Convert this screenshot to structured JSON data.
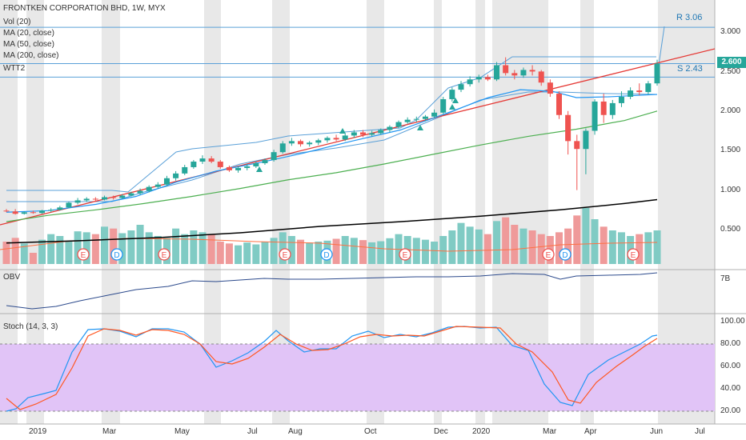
{
  "header": {
    "title": "FRONTKEN CORPORATION BHD, 1W, MYX",
    "legend": [
      "Vol (20)",
      "MA (20, close)",
      "MA (50, close)",
      "MA (200, close)",
      "WTT2"
    ]
  },
  "colors": {
    "up": "#26a69a",
    "down": "#ef5350",
    "ma20": "#2196f3",
    "ma50": "#4caf50",
    "ma200": "#000000",
    "trend": "#e53935",
    "stoch_k": "#2196f3",
    "stoch_d": "#ff5722",
    "stoch_band": "#e1c4f7",
    "obv": "#2c4a8c",
    "weekend_shade": "#e6e6e6"
  },
  "price_panel": {
    "last_price": "2.600",
    "resistance_label": "R 3.06",
    "support_label": "S 2.43",
    "yticks": [
      "3.000",
      "2.500",
      "2.000",
      "1.500",
      "1.000",
      "0.500"
    ]
  },
  "obv_panel": {
    "label": "OBV",
    "ytick": "7B"
  },
  "stoch_panel": {
    "label": "Stoch (14, 3, 3)",
    "yticks": [
      "100.00",
      "80.00",
      "60.00",
      "40.00",
      "20.00"
    ]
  },
  "x_axis": {
    "ticks": [
      "2019",
      "Mar",
      "May",
      "Jul",
      "Aug",
      "Oct",
      "Dec",
      "2020",
      "Mar",
      "Apr",
      "Jun",
      "Jul"
    ]
  },
  "chart_data": {
    "type": "candlestick",
    "title": "FRONTKEN CORPORATION BHD, 1W, MYX",
    "price_ylim": [
      0.1,
      3.3
    ],
    "candles": [
      [
        0.74,
        0.76,
        0.72,
        0.73
      ],
      [
        0.73,
        0.76,
        0.69,
        0.7
      ],
      [
        0.7,
        0.73,
        0.69,
        0.72
      ],
      [
        0.72,
        0.74,
        0.7,
        0.71
      ],
      [
        0.71,
        0.75,
        0.7,
        0.74
      ],
      [
        0.74,
        0.77,
        0.72,
        0.75
      ],
      [
        0.75,
        0.8,
        0.74,
        0.78
      ],
      [
        0.78,
        0.85,
        0.77,
        0.84
      ],
      [
        0.84,
        0.9,
        0.82,
        0.87
      ],
      [
        0.87,
        0.91,
        0.85,
        0.89
      ],
      [
        0.89,
        0.91,
        0.86,
        0.88
      ],
      [
        0.88,
        0.93,
        0.87,
        0.91
      ],
      [
        0.91,
        0.93,
        0.88,
        0.9
      ],
      [
        0.9,
        0.95,
        0.89,
        0.93
      ],
      [
        0.93,
        0.98,
        0.92,
        0.96
      ],
      [
        0.96,
        1.02,
        0.94,
        0.99
      ],
      [
        0.99,
        1.06,
        0.97,
        1.04
      ],
      [
        1.04,
        1.1,
        1.02,
        1.07
      ],
      [
        1.07,
        1.18,
        1.05,
        1.15
      ],
      [
        1.15,
        1.24,
        1.12,
        1.21
      ],
      [
        1.21,
        1.32,
        1.19,
        1.29
      ],
      [
        1.29,
        1.38,
        1.27,
        1.36
      ],
      [
        1.36,
        1.44,
        1.33,
        1.4
      ],
      [
        1.4,
        1.43,
        1.34,
        1.36
      ],
      [
        1.36,
        1.38,
        1.27,
        1.29
      ],
      [
        1.29,
        1.31,
        1.23,
        1.25
      ],
      [
        1.25,
        1.3,
        1.22,
        1.28
      ],
      [
        1.28,
        1.33,
        1.25,
        1.3
      ],
      [
        1.3,
        1.36,
        1.28,
        1.34
      ],
      [
        1.34,
        1.4,
        1.32,
        1.38
      ],
      [
        1.38,
        1.51,
        1.36,
        1.48
      ],
      [
        1.48,
        1.62,
        1.46,
        1.59
      ],
      [
        1.59,
        1.66,
        1.56,
        1.62
      ],
      [
        1.62,
        1.64,
        1.55,
        1.58
      ],
      [
        1.58,
        1.62,
        1.55,
        1.6
      ],
      [
        1.6,
        1.65,
        1.57,
        1.63
      ],
      [
        1.63,
        1.68,
        1.6,
        1.66
      ],
      [
        1.66,
        1.7,
        1.62,
        1.64
      ],
      [
        1.64,
        1.72,
        1.62,
        1.69
      ],
      [
        1.69,
        1.76,
        1.66,
        1.73
      ],
      [
        1.73,
        1.76,
        1.67,
        1.7
      ],
      [
        1.7,
        1.75,
        1.68,
        1.72
      ],
      [
        1.72,
        1.78,
        1.7,
        1.76
      ],
      [
        1.76,
        1.82,
        1.73,
        1.8
      ],
      [
        1.8,
        1.88,
        1.78,
        1.86
      ],
      [
        1.86,
        1.92,
        1.84,
        1.89
      ],
      [
        1.89,
        1.93,
        1.86,
        1.9
      ],
      [
        1.9,
        1.95,
        1.87,
        1.93
      ],
      [
        1.93,
        2.02,
        1.91,
        1.98
      ],
      [
        1.98,
        2.18,
        1.96,
        2.15
      ],
      [
        2.15,
        2.3,
        2.12,
        2.27
      ],
      [
        2.27,
        2.38,
        2.24,
        2.34
      ],
      [
        2.34,
        2.44,
        2.31,
        2.4
      ],
      [
        2.4,
        2.46,
        2.36,
        2.43
      ],
      [
        2.43,
        2.46,
        2.38,
        2.4
      ],
      [
        2.4,
        2.62,
        2.38,
        2.58
      ],
      [
        2.58,
        2.68,
        2.45,
        2.48
      ],
      [
        2.48,
        2.52,
        2.4,
        2.45
      ],
      [
        2.45,
        2.55,
        2.42,
        2.52
      ],
      [
        2.52,
        2.58,
        2.45,
        2.5
      ],
      [
        2.5,
        2.52,
        2.32,
        2.36
      ],
      [
        2.36,
        2.4,
        2.18,
        2.22
      ],
      [
        2.22,
        2.25,
        1.9,
        1.95
      ],
      [
        1.95,
        2.0,
        1.45,
        1.62
      ],
      [
        1.62,
        1.7,
        1.0,
        1.52
      ],
      [
        1.52,
        1.78,
        1.2,
        1.75
      ],
      [
        1.75,
        2.15,
        1.7,
        2.12
      ],
      [
        2.12,
        2.22,
        1.85,
        1.95
      ],
      [
        1.95,
        2.14,
        1.9,
        2.1
      ],
      [
        2.1,
        2.25,
        2.05,
        2.18
      ],
      [
        2.18,
        2.3,
        2.15,
        2.26
      ],
      [
        2.26,
        2.35,
        2.2,
        2.24
      ],
      [
        2.24,
        2.38,
        2.21,
        2.35
      ],
      [
        2.35,
        2.65,
        2.32,
        2.6
      ]
    ],
    "volume": [
      120,
      140,
      110,
      60,
      130,
      160,
      150,
      120,
      175,
      170,
      160,
      200,
      190,
      165,
      180,
      210,
      170,
      150,
      140,
      190,
      160,
      180,
      170,
      160,
      120,
      110,
      100,
      115,
      105,
      118,
      140,
      170,
      150,
      130,
      115,
      120,
      125,
      135,
      150,
      140,
      128,
      116,
      122,
      138,
      160,
      150,
      140,
      130,
      120,
      150,
      180,
      220,
      200,
      185,
      160,
      230,
      250,
      210,
      190,
      180,
      160,
      150,
      170,
      190,
      260,
      300,
      240,
      200,
      180,
      170,
      150,
      160,
      170,
      180
    ],
    "levels": {
      "resistance": 3.06,
      "support": 2.43
    }
  }
}
